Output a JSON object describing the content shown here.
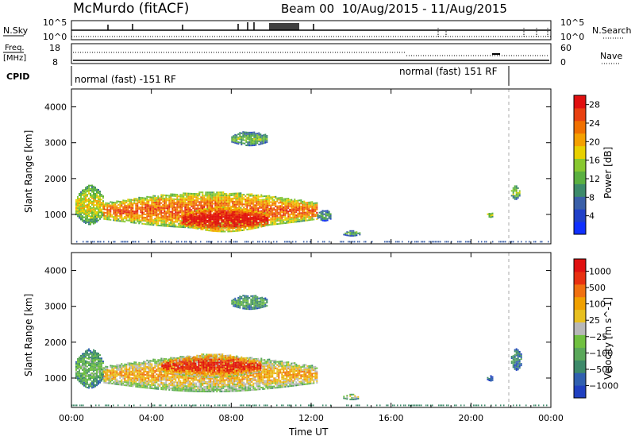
{
  "header": {
    "station": "McMurdo (fitACF)",
    "beam_info": "Beam 00  10/Aug/2015 - 11/Aug/2015"
  },
  "top_panels": {
    "nsky_label": "N.Sky",
    "nsky_ticks": [
      "10^5",
      "10^0"
    ],
    "nsearch_label": "N.Search",
    "nsearch_ticks": [
      "10^5",
      "10^0"
    ],
    "freq_label": "Freq.",
    "freq_unit": "[MHz]",
    "freq_ticks": [
      "18",
      "8"
    ],
    "nave_label": "Nave",
    "nave_ticks": [
      "60",
      "0"
    ],
    "cpid_label": "CPID",
    "cpid_segments": [
      "normal (fast) -151 RF",
      "normal (fast) 151 RF"
    ]
  },
  "chart_data": [
    {
      "type": "heatmap",
      "panel": "power",
      "ylabel": "Slant Range [km]",
      "xlabel": "",
      "x_ticks": [
        "00:00",
        "04:00",
        "08:00",
        "12:00",
        "16:00",
        "20:00",
        "00:00"
      ],
      "x_range_hours": [
        0,
        24
      ],
      "y_ticks": [
        1000,
        2000,
        3000,
        4000
      ],
      "ylim": [
        180,
        4500
      ],
      "colorbar": {
        "label": "Power [dB]",
        "ticks": [
          4,
          8,
          12,
          16,
          20,
          24,
          28
        ],
        "range": [
          0,
          30
        ],
        "colors": [
          "#1030ff",
          "#2040c8",
          "#3a5fa8",
          "#3c8a6a",
          "#5ab040",
          "#88c830",
          "#e8d000",
          "#f4a000",
          "#f07000",
          "#e84010",
          "#e01010"
        ]
      },
      "echo_regions": [
        {
          "t": [
            0.2,
            1.6
          ],
          "r": [
            700,
            1800
          ],
          "level": 0.55
        },
        {
          "t": [
            1.6,
            12.3
          ],
          "r": [
            600,
            1600
          ],
          "level": 0.75
        },
        {
          "t": [
            5.5,
            9.8
          ],
          "r": [
            500,
            1200
          ],
          "level": 0.95
        },
        {
          "t": [
            12.3,
            13.0
          ],
          "r": [
            800,
            1100
          ],
          "level": 0.3
        },
        {
          "t": [
            13.6,
            14.4
          ],
          "r": [
            380,
            520
          ],
          "level": 0.4
        },
        {
          "t": [
            20.8,
            21.1
          ],
          "r": [
            900,
            1050
          ],
          "level": 0.5
        },
        {
          "t": [
            22.0,
            22.4
          ],
          "r": [
            1400,
            1800
          ],
          "level": 0.45
        },
        {
          "t": [
            8.0,
            9.8
          ],
          "r": [
            2900,
            3300
          ],
          "level": 0.4
        }
      ]
    },
    {
      "type": "heatmap",
      "panel": "velocity",
      "ylabel": "Slant Range [km]",
      "xlabel": "Time UT",
      "x_ticks": [
        "00:00",
        "04:00",
        "08:00",
        "12:00",
        "16:00",
        "20:00",
        "00:00"
      ],
      "x_range_hours": [
        0,
        24
      ],
      "y_ticks": [
        1000,
        2000,
        3000,
        4000
      ],
      "ylim": [
        180,
        4500
      ],
      "colorbar": {
        "label": "Velocity [m s^-1]",
        "ticks": [
          "1000",
          "500",
          "100",
          "25",
          "-25",
          "-100",
          "-500",
          "-1000"
        ],
        "colors": [
          "#2040c0",
          "#3060b0",
          "#3d8a6a",
          "#5aa85a",
          "#70c040",
          "#b8b8b8",
          "#e8c020",
          "#f0a000",
          "#f07010",
          "#e83010",
          "#e01010"
        ]
      },
      "echo_regions": [
        {
          "t": [
            0.2,
            1.6
          ],
          "r": [
            700,
            1800
          ],
          "level": 0.35
        },
        {
          "t": [
            1.6,
            12.3
          ],
          "r": [
            600,
            1600
          ],
          "level": 0.62
        },
        {
          "t": [
            4.5,
            9.5
          ],
          "r": [
            1000,
            1650
          ],
          "level": 0.85
        },
        {
          "t": [
            13.6,
            14.4
          ],
          "r": [
            380,
            520
          ],
          "level": 0.5
        },
        {
          "t": [
            20.8,
            21.1
          ],
          "r": [
            900,
            1050
          ],
          "level": 0.15
        },
        {
          "t": [
            22.0,
            22.5
          ],
          "r": [
            1200,
            1800
          ],
          "level": 0.2
        },
        {
          "t": [
            8.0,
            9.8
          ],
          "r": [
            2900,
            3300
          ],
          "level": 0.3
        }
      ]
    }
  ]
}
